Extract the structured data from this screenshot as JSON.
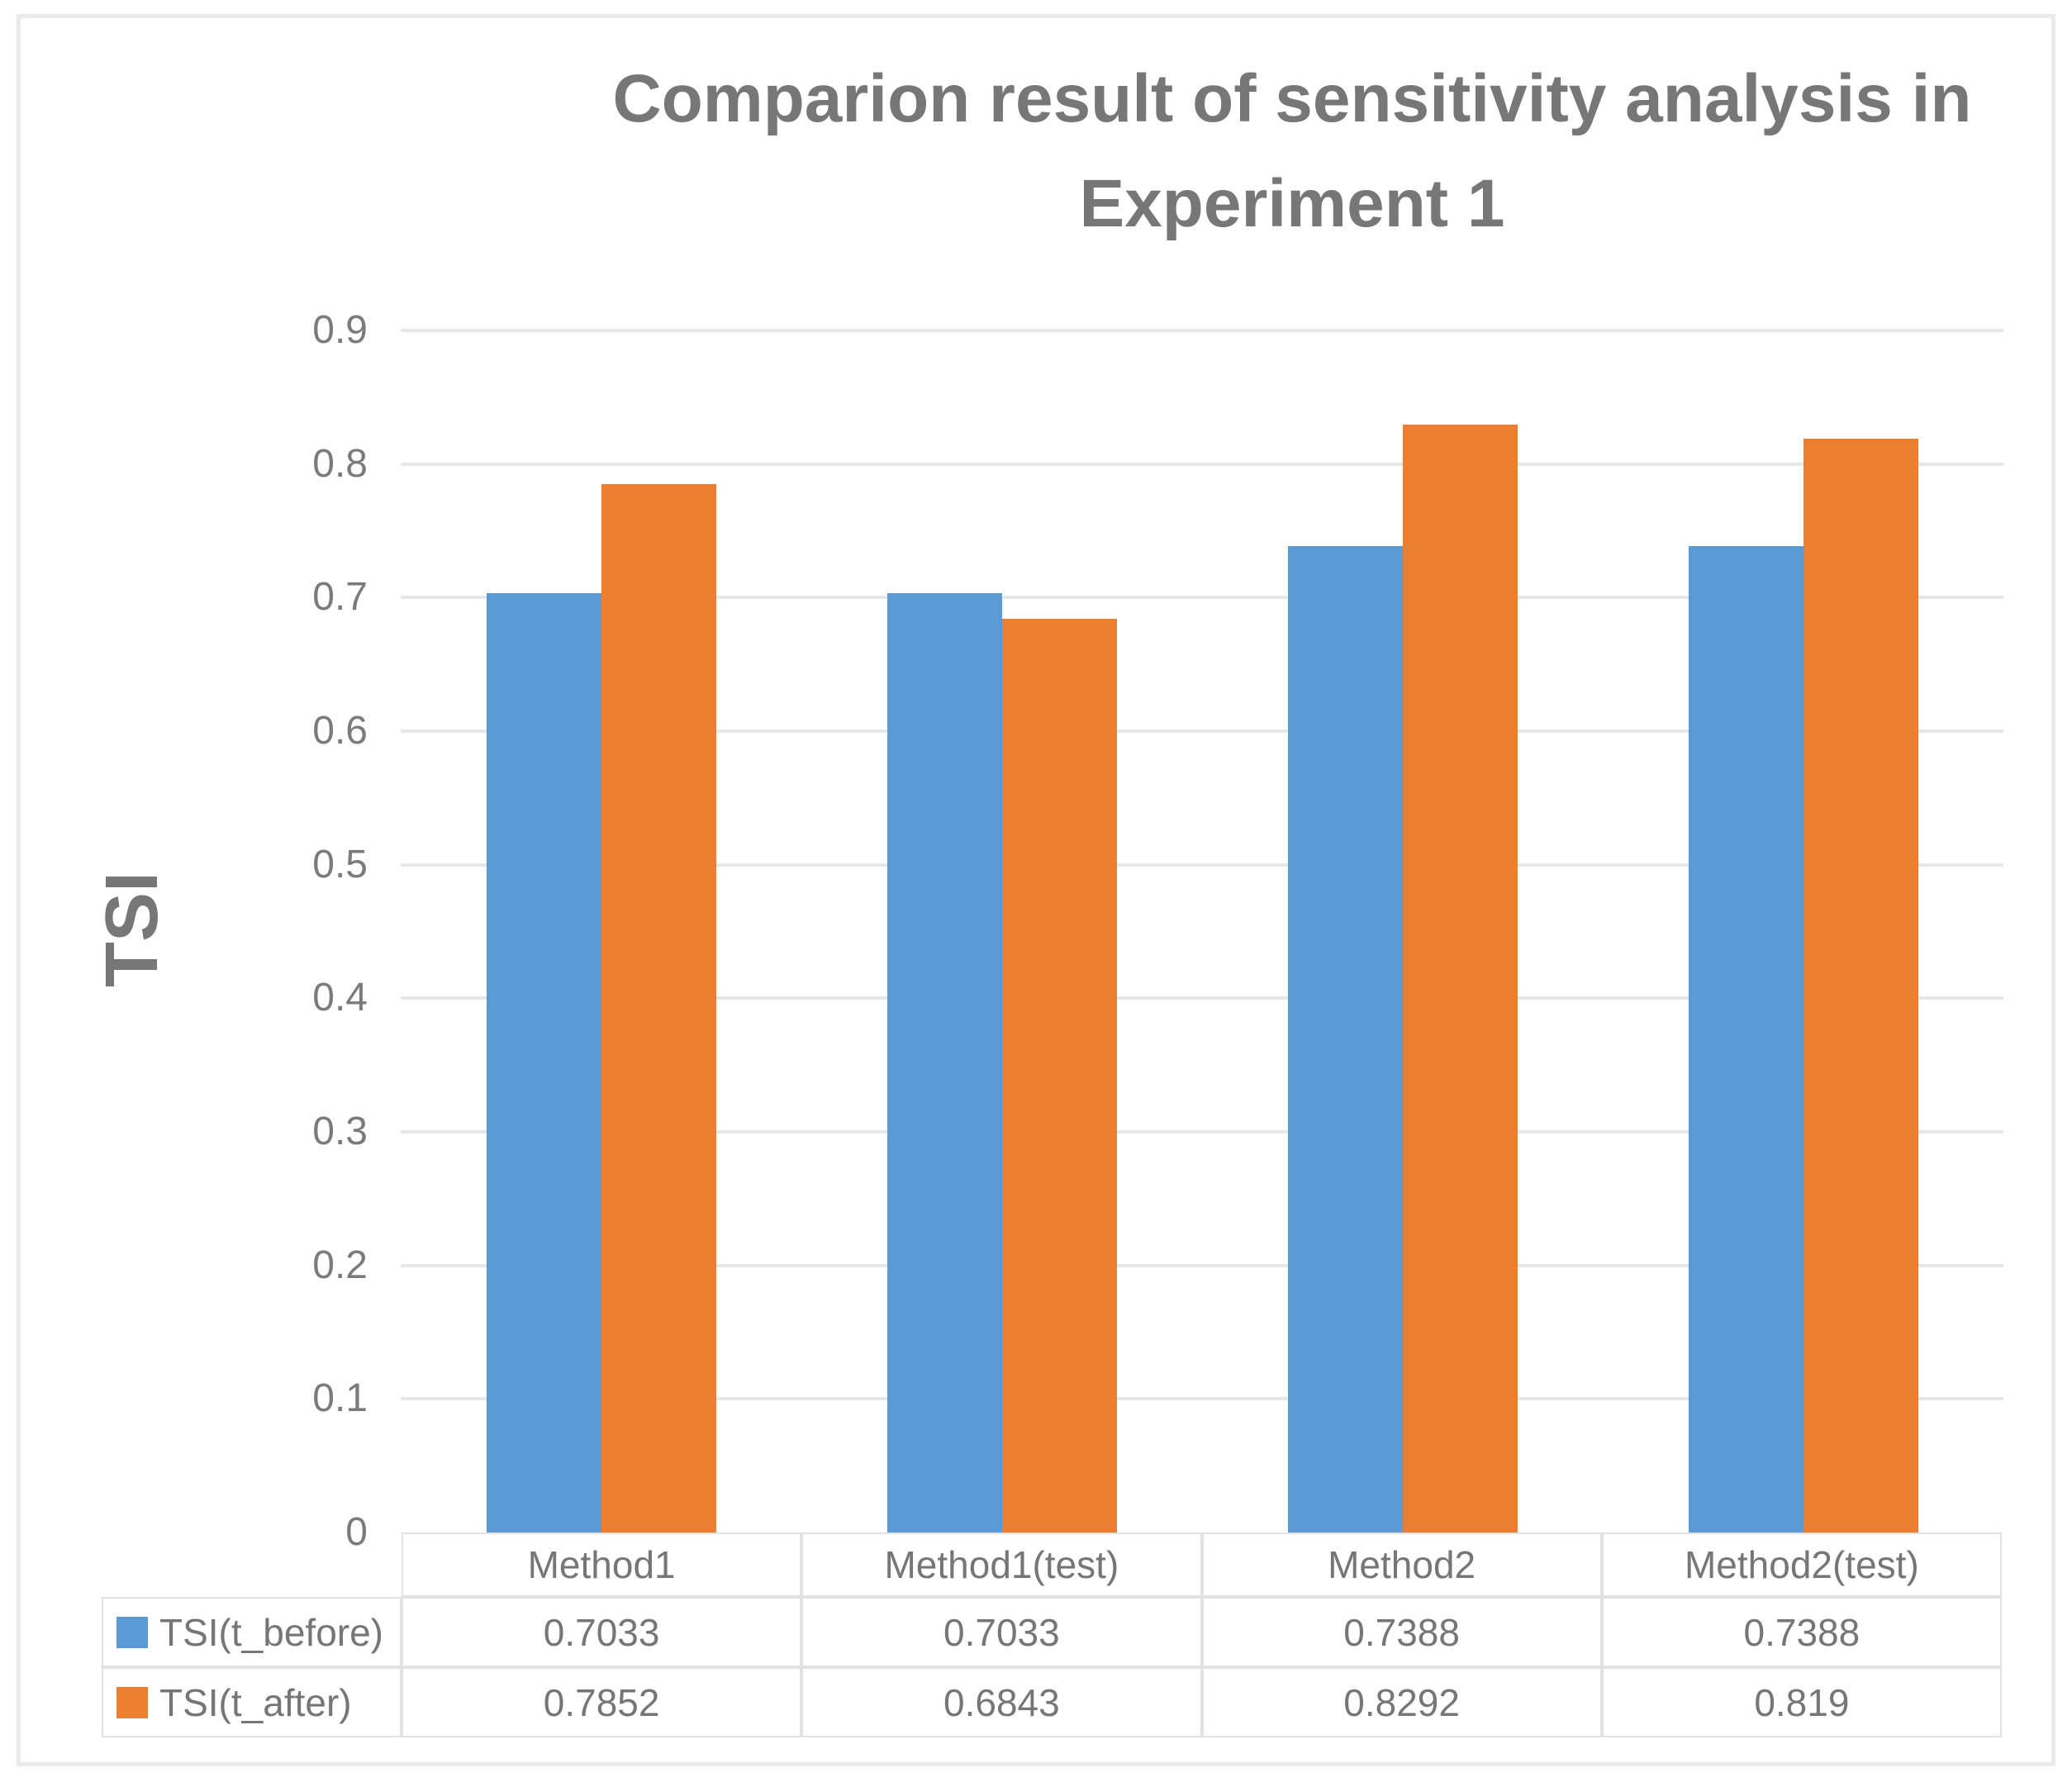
{
  "header": {
    "title_lines": [
      "Comparion result of sensitivity analysis in",
      "Experiment 1"
    ]
  },
  "chart_data": {
    "type": "bar",
    "title": "Comparion result of sensitivity analysis in Experiment 1",
    "xlabel": "",
    "ylabel": "TSI",
    "ylim": [
      0,
      0.9
    ],
    "ytick_labels": [
      "0",
      "0.1",
      "0.2",
      "0.3",
      "0.4",
      "0.5",
      "0.6",
      "0.7",
      "0.8",
      "0.9"
    ],
    "grid": true,
    "legend_position": "data-table-left",
    "categories": [
      "Method1",
      "Method1(test)",
      "Method2",
      "Method2(test)"
    ],
    "series": [
      {
        "name": "TSI(t_before)",
        "color": "#5B9BD5",
        "values": [
          0.7033,
          0.7033,
          0.7388,
          0.7388
        ],
        "display_values": [
          "0.7033",
          "0.7033",
          "0.7388",
          "0.7388"
        ]
      },
      {
        "name": "TSI(t_after)",
        "color": "#ED7D31",
        "values": [
          0.7852,
          0.6843,
          0.8292,
          0.819
        ],
        "display_values": [
          "0.7852",
          "0.6843",
          "0.8292",
          "0.819"
        ]
      }
    ],
    "colors": {
      "grid": "#e7e7e7",
      "text": "#767676",
      "table_border": "#e2e2e2",
      "series_blue": "#5B9BD5",
      "series_orange": "#ED7D31"
    }
  }
}
